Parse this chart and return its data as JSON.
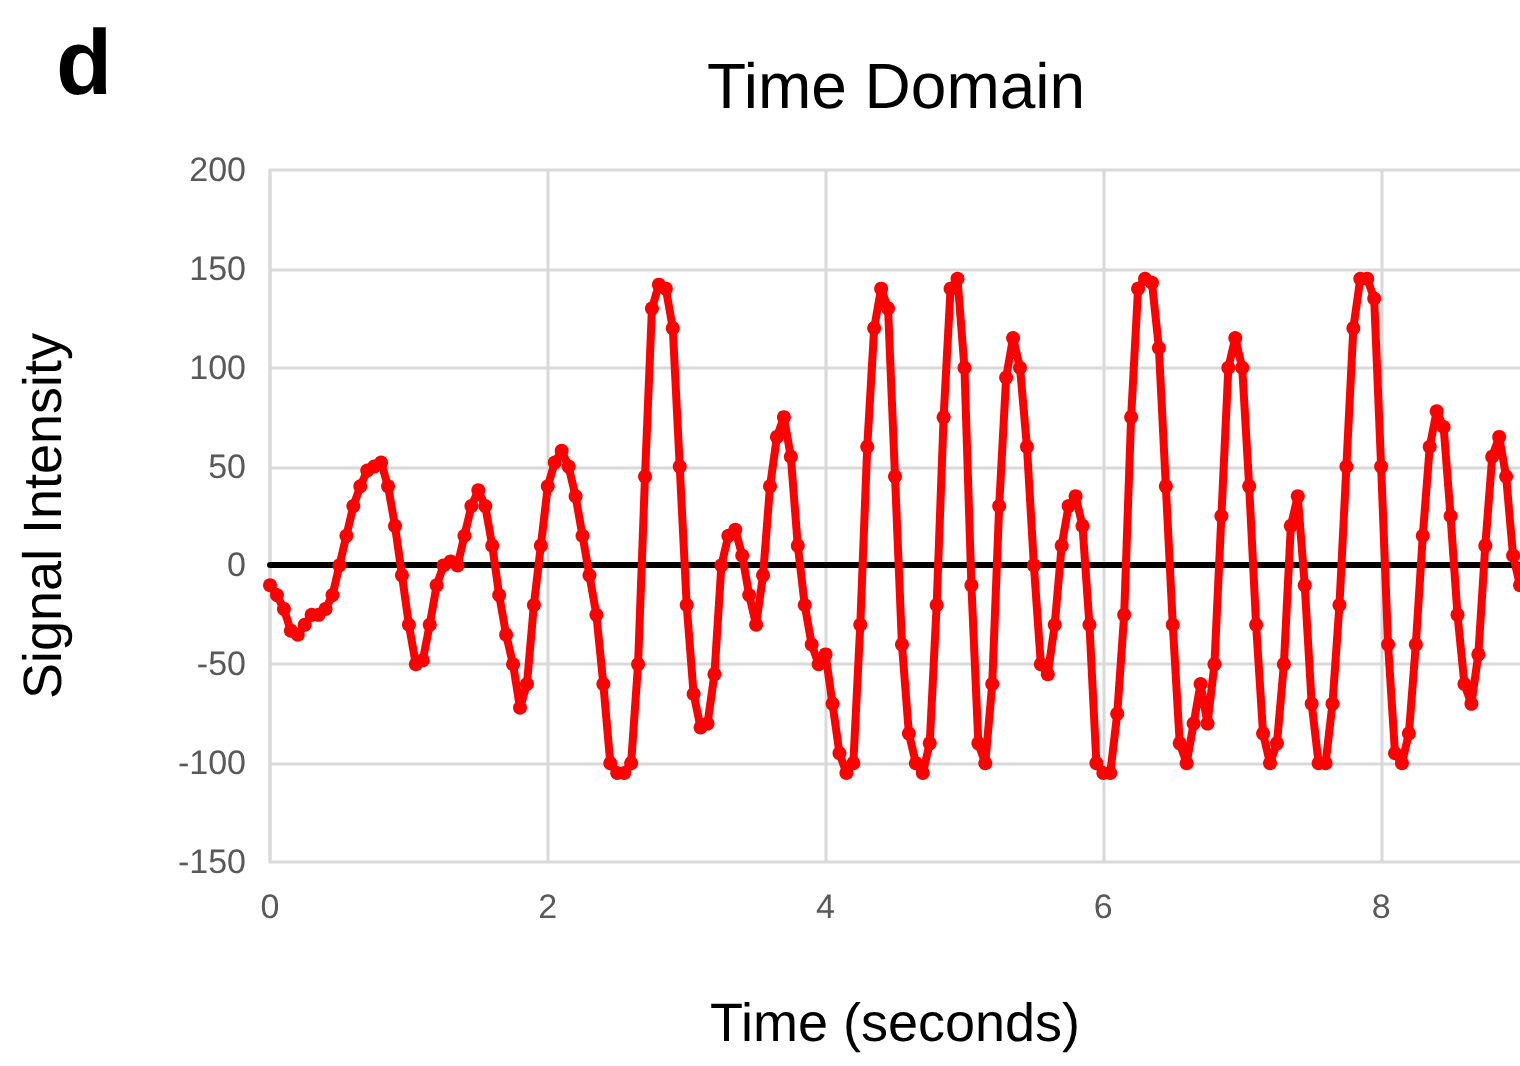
{
  "chart_data": {
    "type": "line",
    "title": "Time Domain",
    "xlabel": "Time (seconds)",
    "ylabel": "Signal Intensity",
    "annotations": [
      "d"
    ],
    "x": [
      0,
      0.05,
      0.1,
      0.15,
      0.2,
      0.25,
      0.3,
      0.35,
      0.4,
      0.45,
      0.5,
      0.55,
      0.6,
      0.65,
      0.7,
      0.75,
      0.8,
      0.85,
      0.9,
      0.95,
      1.0,
      1.05,
      1.1,
      1.15,
      1.2,
      1.25,
      1.3,
      1.35,
      1.4,
      1.45,
      1.5,
      1.55,
      1.6,
      1.65,
      1.7,
      1.75,
      1.8,
      1.85,
      1.9,
      1.95,
      2.0,
      2.05,
      2.1,
      2.15,
      2.2,
      2.25,
      2.3,
      2.35,
      2.4,
      2.45,
      2.5,
      2.55,
      2.6,
      2.65,
      2.7,
      2.75,
      2.8,
      2.85,
      2.9,
      2.95,
      3.0,
      3.05,
      3.1,
      3.15,
      3.2,
      3.25,
      3.3,
      3.35,
      3.4,
      3.45,
      3.5,
      3.55,
      3.6,
      3.65,
      3.7,
      3.75,
      3.8,
      3.85,
      3.9,
      3.95,
      4.0,
      4.05,
      4.1,
      4.15,
      4.2,
      4.25,
      4.3,
      4.35,
      4.4,
      4.45,
      4.5,
      4.55,
      4.6,
      4.65,
      4.7,
      4.75,
      4.8,
      4.85,
      4.9,
      4.95,
      5.0,
      5.05,
      5.1,
      5.15,
      5.2,
      5.25,
      5.3,
      5.35,
      5.4,
      5.45,
      5.5,
      5.55,
      5.6,
      5.65,
      5.7,
      5.75,
      5.8,
      5.85,
      5.9,
      5.95,
      6.0,
      6.05,
      6.1,
      6.15,
      6.2,
      6.25,
      6.3,
      6.35,
      6.4,
      6.45,
      6.5,
      6.55,
      6.6,
      6.65,
      6.7,
      6.75,
      6.8,
      6.85,
      6.9,
      6.95,
      7.0,
      7.05,
      7.1,
      7.15,
      7.2,
      7.25,
      7.3,
      7.35,
      7.4,
      7.45,
      7.5,
      7.55,
      7.6,
      7.65,
      7.7,
      7.75,
      7.8,
      7.85,
      7.9,
      7.95,
      8.0,
      8.05,
      8.1,
      8.15,
      8.2,
      8.25,
      8.3,
      8.35,
      8.4,
      8.45,
      8.5,
      8.55,
      8.6,
      8.65,
      8.7,
      8.75,
      8.8,
      8.85,
      8.9,
      8.95,
      9.0
    ],
    "series": [
      {
        "color": "#ff0000",
        "values": [
          -10,
          -15,
          -22,
          -33,
          -35,
          -30,
          -25,
          -25,
          -22,
          -15,
          0,
          15,
          30,
          40,
          48,
          50,
          52,
          40,
          20,
          -5,
          -30,
          -50,
          -48,
          -30,
          -10,
          0,
          2,
          0,
          15,
          30,
          38,
          30,
          10,
          -15,
          -35,
          -50,
          -72,
          -60,
          -20,
          10,
          40,
          52,
          58,
          50,
          35,
          15,
          -5,
          -25,
          -60,
          -100,
          -105,
          -105,
          -100,
          -50,
          45,
          130,
          142,
          140,
          120,
          50,
          -20,
          -65,
          -82,
          -80,
          -55,
          0,
          15,
          18,
          5,
          -15,
          -30,
          -5,
          40,
          65,
          75,
          55,
          10,
          -20,
          -40,
          -50,
          -45,
          -70,
          -95,
          -105,
          -100,
          -30,
          60,
          120,
          140,
          130,
          45,
          -40,
          -85,
          -100,
          -105,
          -90,
          -20,
          75,
          140,
          145,
          100,
          -10,
          -90,
          -100,
          -60,
          30,
          95,
          115,
          100,
          60,
          0,
          -50,
          -55,
          -30,
          10,
          30,
          35,
          20,
          -30,
          -100,
          -105,
          -105,
          -75,
          -25,
          75,
          140,
          145,
          143,
          110,
          40,
          -30,
          -90,
          -100,
          -80,
          -60,
          -80,
          -50,
          25,
          100,
          115,
          100,
          40,
          -30,
          -85,
          -100,
          -90,
          -50,
          20,
          35,
          -10,
          -70,
          -100,
          -100,
          -70,
          -20,
          50,
          120,
          145,
          145,
          135,
          50,
          -40,
          -95,
          -100,
          -85,
          -40,
          15,
          60,
          78,
          70,
          25,
          -25,
          -60,
          -70,
          -45,
          10,
          55,
          65,
          45,
          5,
          -10
        ]
      }
    ],
    "xlim": [
      0,
      9
    ],
    "xticks": [
      0,
      2,
      4,
      6,
      8
    ],
    "ylim": [
      -150,
      200
    ],
    "yticks": [
      -150,
      -100,
      -50,
      0,
      50,
      100,
      150,
      200
    ],
    "grid": true,
    "marker": "circle",
    "line_style": "solid"
  }
}
